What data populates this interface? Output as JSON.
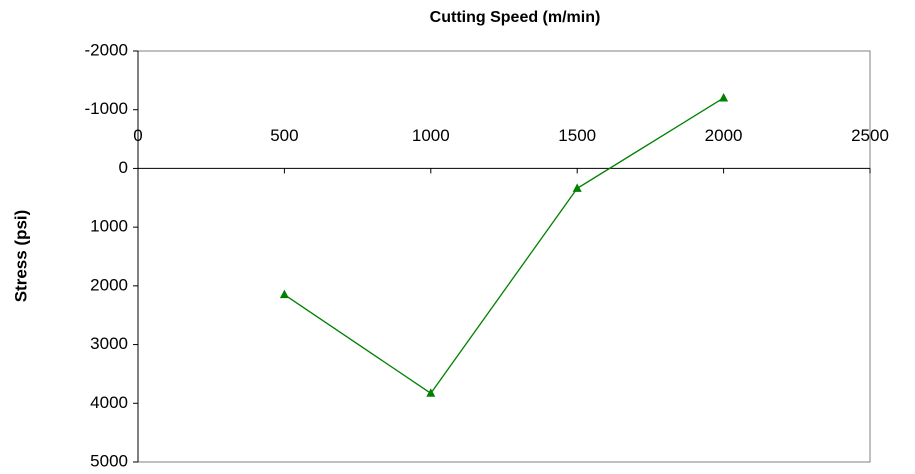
{
  "chart_data": {
    "type": "line",
    "title": "Cutting Speed (m/min)",
    "y_label": "Stress (psi)",
    "x": [
      500,
      1000,
      1500,
      2000
    ],
    "series": [
      {
        "color": "#008000",
        "values": [
          2150,
          3830,
          340,
          -1200
        ]
      }
    ],
    "xlim": [
      0,
      2500
    ],
    "xticks": [
      0,
      500,
      1000,
      1500,
      2000,
      2500
    ],
    "ylim": [
      -2000,
      5000
    ],
    "yticks": [
      -2000,
      -1000,
      0,
      1000,
      2000,
      3000,
      4000,
      5000
    ],
    "y_reversed": true,
    "grid": false,
    "marker": "triangle"
  }
}
